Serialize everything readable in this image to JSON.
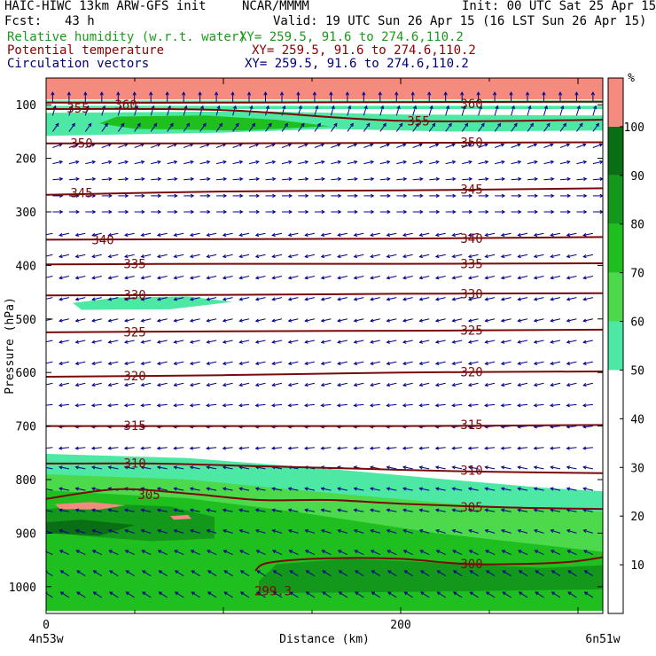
{
  "header": {
    "model": "HAIC-HIWC 13km ARW-GFS init",
    "org": "NCAR/MMMM",
    "init": "Init: 00 UTC Sat 25 Apr 15",
    "fcst_label": "Fcst:",
    "fcst_value": "43 h",
    "valid": "Valid: 19 UTC Sun 26 Apr 15 (16 LST Sun 26 Apr 15)",
    "fields": [
      {
        "name": "Relative humidity (w.r.t. water)",
        "xy": "XY= 259.5, 91.6 to 274.6,110.2",
        "color": "#1a9a1a"
      },
      {
        "name": "Potential temperature",
        "xy": "XY= 259.5, 91.6 to 274.6,110.2",
        "color": "#8b0000"
      },
      {
        "name": "Circulation vectors",
        "xy": "XY= 259.5, 91.6 to 274.6,110.2",
        "color": "#00007a"
      }
    ]
  },
  "colors": {
    "theta": "#7a0a0a",
    "vector": "#00008b",
    "rh_bins": [
      "#ffffff",
      "#ffffff",
      "#ffffff",
      "#ffffff",
      "#ffffff",
      "#4de8a4",
      "#4cd94c",
      "#1fbf1f",
      "#13981b",
      "#0a6e14",
      "#f58a7f"
    ]
  },
  "chart_data": {
    "type": "cross-section contour",
    "xlabel": "Distance (km)",
    "ylabel": "Pressure (hPa)",
    "xlim": [
      0,
      314
    ],
    "ylim": [
      1050,
      50
    ],
    "x_ticks": [
      {
        "v": 0,
        "label": "0"
      },
      {
        "v": 200,
        "label": "200"
      }
    ],
    "y_ticks": [
      100,
      200,
      300,
      400,
      500,
      600,
      700,
      800,
      900,
      1000
    ],
    "end_labels": {
      "left": "4n53w",
      "right": "6n51w"
    },
    "colorbar": {
      "unit": "%",
      "bounds": [
        0,
        10,
        20,
        30,
        40,
        50,
        60,
        70,
        80,
        90,
        100,
        110
      ],
      "tick_labels": [
        "10",
        "20",
        "30",
        "40",
        "50",
        "60",
        "70",
        "80",
        "90",
        "100"
      ]
    },
    "theta_contours": [
      {
        "value": 300,
        "points": [
          [
            118,
            970
          ],
          [
            126,
            955
          ],
          [
            160,
            947
          ],
          [
            200,
            948
          ],
          [
            240,
            958
          ],
          [
            290,
            955
          ],
          [
            314,
            945
          ]
        ],
        "label_positions": [
          [
            240,
            957
          ]
        ]
      },
      {
        "value": 305,
        "points": [
          [
            0,
            836
          ],
          [
            40,
            818
          ],
          [
            80,
            826
          ],
          [
            120,
            838
          ],
          [
            160,
            838
          ],
          [
            200,
            845
          ],
          [
            260,
            852
          ],
          [
            314,
            855
          ]
        ],
        "label_positions": [
          [
            58,
            828
          ],
          [
            240,
            851
          ]
        ]
      },
      {
        "value": 310,
        "points": [
          [
            0,
            770
          ],
          [
            60,
            770
          ],
          [
            120,
            775
          ],
          [
            180,
            780
          ],
          [
            240,
            785
          ],
          [
            314,
            788
          ]
        ],
        "label_positions": [
          [
            50,
            769
          ],
          [
            240,
            783
          ]
        ]
      },
      {
        "value": 315,
        "points": [
          [
            0,
            700
          ],
          [
            100,
            700
          ],
          [
            200,
            700
          ],
          [
            314,
            698
          ]
        ],
        "label_positions": [
          [
            50,
            699
          ],
          [
            240,
            697
          ]
        ]
      },
      {
        "value": 320,
        "points": [
          [
            0,
            608
          ],
          [
            100,
            605
          ],
          [
            200,
            600
          ],
          [
            314,
            598
          ]
        ],
        "label_positions": [
          [
            50,
            606
          ],
          [
            240,
            599
          ]
        ]
      },
      {
        "value": 325,
        "points": [
          [
            0,
            525
          ],
          [
            100,
            523
          ],
          [
            200,
            522
          ],
          [
            314,
            520
          ]
        ],
        "label_positions": [
          [
            50,
            524
          ],
          [
            240,
            521
          ]
        ]
      },
      {
        "value": 330,
        "points": [
          [
            0,
            456
          ],
          [
            100,
            455
          ],
          [
            200,
            453
          ],
          [
            314,
            452
          ]
        ],
        "label_positions": [
          [
            50,
            455
          ],
          [
            240,
            453
          ]
        ]
      },
      {
        "value": 335,
        "points": [
          [
            0,
            398
          ],
          [
            100,
            397
          ],
          [
            200,
            397
          ],
          [
            314,
            396
          ]
        ],
        "label_positions": [
          [
            50,
            397
          ],
          [
            240,
            397
          ]
        ]
      },
      {
        "value": 340,
        "points": [
          [
            0,
            352
          ],
          [
            100,
            351
          ],
          [
            200,
            350
          ],
          [
            314,
            347
          ]
        ],
        "label_positions": [
          [
            32,
            352
          ],
          [
            240,
            350
          ]
        ]
      },
      {
        "value": 345,
        "points": [
          [
            0,
            268
          ],
          [
            100,
            262
          ],
          [
            200,
            260
          ],
          [
            314,
            256
          ]
        ],
        "label_positions": [
          [
            20,
            264
          ],
          [
            240,
            258
          ]
        ]
      },
      {
        "value": 350,
        "points": [
          [
            0,
            172
          ],
          [
            100,
            172
          ],
          [
            200,
            171
          ],
          [
            314,
            170
          ]
        ],
        "label_positions": [
          [
            20,
            172
          ],
          [
            240,
            170
          ]
        ]
      },
      {
        "value": 355,
        "points": [
          [
            0,
            108
          ],
          [
            100,
            110
          ],
          [
            200,
            130
          ],
          [
            314,
            128
          ]
        ],
        "label_positions": [
          [
            18,
            106
          ],
          [
            210,
            130
          ]
        ]
      },
      {
        "value": 360,
        "points": [
          [
            0,
            96
          ],
          [
            100,
            96
          ],
          [
            200,
            95
          ],
          [
            314,
            94
          ]
        ],
        "label_positions": [
          [
            45,
            100
          ],
          [
            240,
            98
          ]
        ]
      }
    ],
    "theta_extra_labels": [
      {
        "text": "299.3",
        "x": 128,
        "p": 1008
      }
    ],
    "rh_regions": [
      {
        "bin": 10,
        "points": [
          [
            0,
            50
          ],
          [
            314,
            50
          ],
          [
            314,
            90
          ],
          [
            0,
            90
          ]
        ]
      },
      {
        "bin": 5,
        "points": [
          [
            0,
            92
          ],
          [
            314,
            92
          ],
          [
            314,
            97
          ],
          [
            0,
            97
          ]
        ]
      },
      {
        "bin": 5,
        "points": [
          [
            0,
            102
          ],
          [
            314,
            102
          ],
          [
            314,
            108
          ],
          [
            0,
            108
          ]
        ]
      },
      {
        "bin": 5,
        "points": [
          [
            0,
            115
          ],
          [
            120,
            112
          ],
          [
            200,
            118
          ],
          [
            314,
            120
          ],
          [
            314,
            148
          ],
          [
            230,
            150
          ],
          [
            160,
            145
          ],
          [
            100,
            152
          ],
          [
            0,
            158
          ]
        ]
      },
      {
        "bin": 7,
        "points": [
          [
            40,
            122
          ],
          [
            90,
            120
          ],
          [
            130,
            128
          ],
          [
            160,
            140
          ],
          [
            110,
            148
          ],
          [
            50,
            145
          ],
          [
            30,
            135
          ]
        ]
      },
      {
        "bin": 5,
        "points": [
          [
            15,
            470
          ],
          [
            40,
            460
          ],
          [
            80,
            458
          ],
          [
            105,
            468
          ],
          [
            70,
            482
          ],
          [
            20,
            483
          ]
        ]
      },
      {
        "bin": 5,
        "points": [
          [
            0,
            752
          ],
          [
            80,
            760
          ],
          [
            160,
            780
          ],
          [
            220,
            798
          ],
          [
            280,
            815
          ],
          [
            314,
            822
          ],
          [
            314,
            1045
          ],
          [
            0,
            1045
          ]
        ]
      },
      {
        "bin": 6,
        "points": [
          [
            0,
            790
          ],
          [
            80,
            800
          ],
          [
            160,
            825
          ],
          [
            230,
            845
          ],
          [
            314,
            860
          ],
          [
            314,
            1045
          ],
          [
            0,
            1045
          ]
        ]
      },
      {
        "bin": 7,
        "points": [
          [
            0,
            820
          ],
          [
            80,
            835
          ],
          [
            140,
            860
          ],
          [
            220,
            900
          ],
          [
            314,
            935
          ],
          [
            314,
            1045
          ],
          [
            0,
            1045
          ]
        ]
      },
      {
        "bin": 8,
        "points": [
          [
            0,
            855
          ],
          [
            30,
            845
          ],
          [
            70,
            850
          ],
          [
            95,
            870
          ],
          [
            95,
            910
          ],
          [
            60,
            915
          ],
          [
            20,
            905
          ],
          [
            0,
            895
          ]
        ]
      },
      {
        "bin": 8,
        "points": [
          [
            120,
            990
          ],
          [
            130,
            958
          ],
          [
            170,
            948
          ],
          [
            220,
            955
          ],
          [
            280,
            965
          ],
          [
            314,
            960
          ],
          [
            314,
            1005
          ],
          [
            200,
            1010
          ],
          [
            120,
            1012
          ]
        ]
      },
      {
        "bin": 9,
        "points": [
          [
            0,
            880
          ],
          [
            20,
            875
          ],
          [
            50,
            885
          ],
          [
            30,
            905
          ],
          [
            0,
            900
          ]
        ]
      },
      {
        "bin": 10,
        "points": [
          [
            5,
            846
          ],
          [
            25,
            842
          ],
          [
            45,
            848
          ],
          [
            30,
            856
          ],
          [
            8,
            855
          ]
        ]
      },
      {
        "bin": 10,
        "points": [
          [
            70,
            868
          ],
          [
            80,
            866
          ],
          [
            82,
            873
          ],
          [
            72,
            875
          ]
        ]
      }
    ],
    "vector_rows": [
      {
        "p": 95,
        "u": 0.0,
        "v": 1.0
      },
      {
        "p": 120,
        "u": 0.3,
        "v": 1.0
      },
      {
        "p": 150,
        "u": 0.5,
        "v": 0.7
      },
      {
        "p": 180,
        "u": 0.8,
        "v": 0.3
      },
      {
        "p": 210,
        "u": 0.9,
        "v": 0.2
      },
      {
        "p": 240,
        "u": 1.0,
        "v": 0.1
      },
      {
        "p": 270,
        "u": 1.0,
        "v": 0.0
      },
      {
        "p": 300,
        "u": 1.0,
        "v": 0.0
      },
      {
        "p": 340,
        "u": -0.9,
        "v": -0.2
      },
      {
        "p": 380,
        "u": -0.9,
        "v": -0.2
      },
      {
        "p": 420,
        "u": -0.9,
        "v": -0.2
      },
      {
        "p": 460,
        "u": -0.9,
        "v": -0.2
      },
      {
        "p": 500,
        "u": -0.9,
        "v": -0.2
      },
      {
        "p": 540,
        "u": -0.9,
        "v": -0.2
      },
      {
        "p": 580,
        "u": -0.9,
        "v": -0.2
      },
      {
        "p": 620,
        "u": -0.9,
        "v": -0.2
      },
      {
        "p": 660,
        "u": -1.0,
        "v": -0.1
      },
      {
        "p": 700,
        "u": -1.0,
        "v": -0.1
      },
      {
        "p": 740,
        "u": -1.0,
        "v": -0.1
      },
      {
        "p": 780,
        "u": -1.0,
        "v": 0.2
      },
      {
        "p": 820,
        "u": -1.0,
        "v": 0.2
      },
      {
        "p": 860,
        "u": -1.0,
        "v": 0.2
      },
      {
        "p": 900,
        "u": -1.0,
        "v": 0.3
      },
      {
        "p": 940,
        "u": -0.9,
        "v": 0.4
      },
      {
        "p": 980,
        "u": -0.8,
        "v": 0.5
      },
      {
        "p": 1020,
        "u": -0.8,
        "v": 0.5
      }
    ]
  }
}
